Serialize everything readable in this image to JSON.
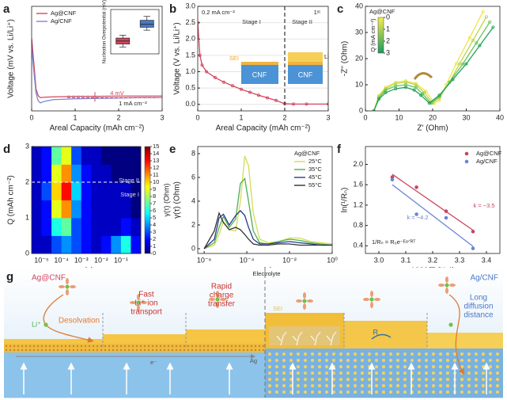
{
  "chart_data": [
    {
      "type": "line",
      "label": "a",
      "xlabel": "Areal Capacity (mAh cm⁻²)",
      "ylabel": "Voltage (mV vs. Li/Li⁺)",
      "x": [
        0,
        0.05,
        0.1,
        0.15,
        0.2,
        0.3,
        0.5,
        1,
        1.5,
        2,
        2.5,
        3
      ],
      "series": [
        {
          "name": "Ag@CNF",
          "color": "#d2475e",
          "values": [
            120,
            60,
            -5,
            -22,
            -27,
            -26,
            -25,
            -24,
            -24,
            -23,
            -23,
            -23
          ]
        },
        {
          "name": "Ag/CNF",
          "color": "#7b86d6",
          "values": [
            100,
            40,
            -15,
            -35,
            -40,
            -36,
            -32,
            -30,
            -29,
            -28,
            -27,
            -27
          ]
        }
      ],
      "xlim": [
        0,
        3
      ],
      "xticks": [
        0,
        1,
        2,
        3
      ],
      "ylim": [
        -60,
        200
      ],
      "legend": "upper left",
      "hlines": [
        -23,
        -27
      ],
      "annotations": [
        "4 mV",
        "1 mA cm⁻²"
      ],
      "inset": {
        "type": "box",
        "ylabel": "Nucleation Overpotential (mV)",
        "ylim": [
          10,
          55
        ],
        "boxes": [
          {
            "color": "#d2475e",
            "min": 17,
            "q1": 20,
            "median": 23,
            "q3": 26,
            "max": 29
          },
          {
            "color": "#4a78c8",
            "min": 34,
            "q1": 37,
            "median": 40,
            "q3": 44,
            "max": 48
          }
        ]
      }
    },
    {
      "type": "line",
      "label": "b",
      "xlabel": "Areal Capacity (mAh cm⁻²)",
      "ylabel": "Voltage (V vs. Li/Li⁺)",
      "x": [
        0,
        0.05,
        0.1,
        0.2,
        0.4,
        0.6,
        0.8,
        1,
        1.2,
        1.4,
        1.6,
        1.8,
        2,
        2.2,
        2.5,
        3
      ],
      "series": [
        {
          "color": "#d2475e",
          "values": [
            2.5,
            1.5,
            1.2,
            1.0,
            0.82,
            0.68,
            0.57,
            0.46,
            0.37,
            0.28,
            0.2,
            0.12,
            0.02,
            0.01,
            0.01,
            0.01
          ]
        }
      ],
      "markers": true,
      "xlim": [
        0,
        3
      ],
      "xticks": [
        0,
        1,
        2,
        3
      ],
      "ylim": [
        -0.2,
        3
      ],
      "yticks": [
        {
          "value": 0,
          "label": "0.0"
        },
        0.5,
        {
          "value": 1,
          "label": "1.0"
        },
        1.5,
        {
          "value": 2,
          "label": "2.0"
        },
        2.5,
        {
          "value": 3,
          "label": "3.0"
        }
      ],
      "grid": true,
      "vline": 2,
      "annotations": [
        "0.2 mA cm⁻²",
        "1ˢᵗ",
        "Stage I",
        "Stage II"
      ],
      "schematic": {
        "sei": "SEI",
        "cnf": [
          "CNF",
          "CNF"
        ],
        "li": "Li"
      }
    },
    {
      "type": "line",
      "label": "c",
      "xlabel": "Z' (Ohm)",
      "ylabel": "-Z'' (Ohm)",
      "markers": true,
      "series": [
        {
          "color": "#f0e44a",
          "x": [
            2.5,
            4,
            6,
            9,
            12,
            15,
            18,
            20.5,
            22,
            24,
            27,
            31,
            35
          ],
          "values": [
            0,
            6,
            9,
            11,
            11.5,
            10.5,
            7.5,
            3,
            4,
            10,
            18,
            28,
            38
          ]
        },
        {
          "color": "#b5d84a",
          "x": [
            2.5,
            4,
            6,
            9,
            12,
            15,
            17.5,
            20,
            22,
            25,
            28,
            32,
            36
          ],
          "values": [
            0,
            5.5,
            8.5,
            10.5,
            11,
            10,
            7,
            3,
            5,
            11,
            18,
            27,
            36
          ]
        },
        {
          "color": "#67c257",
          "x": [
            2.5,
            4,
            6,
            9,
            12,
            15,
            17,
            19.5,
            22,
            25,
            29,
            33,
            37
          ],
          "values": [
            0,
            5,
            8,
            9.5,
            10,
            9,
            6.5,
            3,
            5.5,
            11,
            18,
            26,
            34
          ]
        },
        {
          "color": "#23a05d",
          "x": [
            2.5,
            4,
            6,
            9,
            12,
            14.5,
            16.5,
            19,
            22,
            26,
            30,
            34,
            38
          ],
          "values": [
            0,
            4.5,
            7,
            8.5,
            9,
            8,
            6,
            3,
            6,
            12,
            18,
            25,
            32
          ]
        }
      ],
      "xlim": [
        0,
        40
      ],
      "xticks": [
        0,
        10,
        20,
        30,
        40
      ],
      "ylim": [
        0,
        40
      ],
      "yticks": [
        0,
        10,
        20,
        30,
        40
      ],
      "legend_title": "Ag@CNF",
      "colorbar": {
        "label": "Q (mA cm⁻²)",
        "lim": [
          0,
          3
        ],
        "ticks": [
          0,
          1,
          2,
          3
        ],
        "colors": [
          "#f8ec4e",
          "#1b9b5e"
        ]
      }
    },
    {
      "type": "heatmap",
      "label": "d",
      "xlabel": "τ (s)",
      "ylabel": "Q (mAh cm⁻²)",
      "xscale": "log",
      "x_edges": [
        3.16e-06,
        1e-05,
        3.16e-05,
        0.0001,
        0.000316,
        0.001,
        0.00316,
        0.01,
        0.0316,
        0.1,
        0.316,
        1
      ],
      "y_edges": [
        0,
        0.5,
        1,
        1.5,
        2,
        2.5,
        3
      ],
      "values": [
        [
          1,
          1,
          3,
          4,
          3,
          2,
          1,
          2,
          4,
          6,
          2
        ],
        [
          1,
          2,
          6,
          7,
          3,
          2,
          1,
          1,
          1,
          2,
          1
        ],
        [
          1,
          2,
          9,
          11,
          4,
          2,
          1,
          1,
          1,
          1,
          0
        ],
        [
          1,
          3,
          10,
          13,
          5,
          2,
          1,
          1,
          1,
          1,
          0
        ],
        [
          1,
          2,
          9,
          11,
          4,
          2,
          1,
          1,
          0,
          0,
          0
        ],
        [
          1,
          2,
          7,
          9,
          3,
          1,
          1,
          0,
          0,
          0,
          0
        ]
      ],
      "xlim": [
        3.16e-06,
        1
      ],
      "xticks": [
        {
          "value": 1e-05,
          "label": "10⁻⁵"
        },
        {
          "value": 0.0001,
          "label": "10⁻⁴"
        },
        {
          "value": 0.001,
          "label": "10⁻³"
        },
        {
          "value": 0.01,
          "label": "10⁻²"
        },
        {
          "value": 0.1,
          "label": "10⁻¹"
        }
      ],
      "ylim": [
        0,
        3
      ],
      "yticks": [
        0,
        1,
        2,
        3
      ],
      "hline": 2,
      "annotations": [
        "Stage II",
        "Stage I"
      ],
      "colorbar": {
        "label": "γ(τ) (Ohm)",
        "lim": [
          0,
          15
        ],
        "ticks": [
          0,
          1,
          2,
          3,
          4,
          5,
          6,
          7,
          8,
          9,
          10,
          11,
          12,
          13,
          14,
          15
        ],
        "colormap": "jet"
      }
    },
    {
      "type": "line",
      "label": "e",
      "xlabel": "τ (s)",
      "ylabel": "γ(τ) (Ohm)",
      "xscale": "log",
      "x": [
        1e-06,
        3e-06,
        5e-06,
        8e-06,
        1.5e-05,
        3e-05,
        5e-05,
        8e-05,
        0.00012,
        0.0002,
        0.0004,
        0.001,
        0.003,
        0.01,
        0.03,
        0.1,
        0.3,
        1
      ],
      "series": [
        {
          "name": "25°C",
          "color": "#d4dc55",
          "values": [
            0,
            0.3,
            1.2,
            2.3,
            1.6,
            1.5,
            4,
            7.8,
            7,
            3,
            0.8,
            0.5,
            0.6,
            0.9,
            0.9,
            0.6,
            0.5,
            0.4
          ]
        },
        {
          "name": "35°C",
          "color": "#4caf50",
          "values": [
            0,
            0.5,
            1.8,
            2.7,
            1.8,
            2.5,
            5.5,
            5.9,
            4,
            1.5,
            0.5,
            0.4,
            0.6,
            0.8,
            0.7,
            0.5,
            0.4,
            0.3
          ]
        },
        {
          "name": "45°C",
          "color": "#2b3a8c",
          "values": [
            0,
            0.8,
            2.6,
            2.9,
            2,
            2.8,
            3.2,
            2.8,
            1.8,
            0.8,
            0.4,
            0.4,
            0.5,
            0.6,
            0.5,
            0.4,
            0.3,
            0.3
          ]
        },
        {
          "name": "55°C",
          "color": "#333333",
          "values": [
            0,
            1.5,
            3,
            2.2,
            1.6,
            1.8,
            1.6,
            1.2,
            0.8,
            0.4,
            0.3,
            0.3,
            0.4,
            0.4,
            0.3,
            0.3,
            0.3,
            0.3
          ]
        }
      ],
      "xlim": [
        5e-07,
        1
      ],
      "xticks": [
        {
          "value": 1e-06,
          "label": "10⁻⁶"
        },
        {
          "value": 0.0001,
          "label": "10⁻⁴"
        },
        {
          "value": 0.01,
          "label": "10⁻²"
        },
        {
          "value": 1,
          "label": "10⁰"
        }
      ],
      "ylim": [
        -0.4,
        8.6
      ],
      "yticks": [
        0,
        2,
        4,
        6,
        8
      ],
      "legend": "upper right",
      "legend_title": "Ag@CNF"
    },
    {
      "type": "scatter",
      "label": "f",
      "xlabel": "1000/T (K⁻¹)",
      "ylabel": "ln(¹/Rₙ)",
      "series": [
        {
          "name": "Ag@CNF",
          "color": "#c9455f",
          "x": [
            3.05,
            3.14,
            3.25,
            3.35
          ],
          "values": [
            1.75,
            1.55,
            1.08,
            0.68
          ]
        },
        {
          "name": "Ag/CNF",
          "color": "#6a85d4",
          "x": [
            3.05,
            3.14,
            3.25,
            3.35
          ],
          "values": [
            1.7,
            1.02,
            0.95,
            0.35
          ]
        }
      ],
      "xlim": [
        2.95,
        3.45
      ],
      "xticks": [
        {
          "value": 3,
          "label": "3.0"
        },
        3.1,
        3.2,
        3.3,
        3.4
      ],
      "ylim": [
        0.25,
        2.35
      ],
      "yticks": [
        0.4,
        0.8,
        1.2,
        1.6,
        {
          "value": 2,
          "label": "2.0"
        }
      ],
      "legend": "upper right",
      "fit": true,
      "annotations": [
        "k = −3.5",
        "k = −4.2",
        "1/Rₙ = R₀e⁻ᴱᵃᐟᴿᵀ"
      ]
    }
  ],
  "figure_g": {
    "label": "g",
    "left_title": "Ag@CNF",
    "right_title": "Ag/CNF",
    "electrolyte": "Electrolyte",
    "li_ion": "Li⁺",
    "steps": [
      [
        "Desolvation"
      ],
      [
        "Fast",
        "Li⁺ ion",
        "transport"
      ],
      [
        "Rapid",
        "charge",
        "transfer"
      ]
    ],
    "sei": "SEI",
    "r": "R",
    "right_note": [
      "Long",
      "diffusion",
      "distance"
    ],
    "electron": "e⁻",
    "ag": "Ag"
  }
}
